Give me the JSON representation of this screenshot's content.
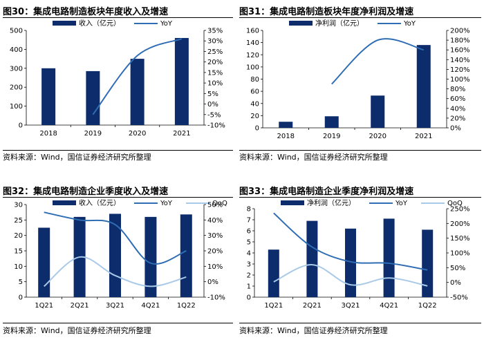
{
  "colors": {
    "bar": "#0d2c6c",
    "yoy": "#2e6db4",
    "qoq": "#a9c9e8"
  },
  "source_text": "资料来源：Wind，国信证券经济研究所整理",
  "chart_data": [
    {
      "type": "bar",
      "title": "图30：集成电路制造板块年度收入及增速",
      "categories": [
        "2018",
        "2019",
        "2020",
        "2021"
      ],
      "series": [
        {
          "name": "收入（亿元）",
          "kind": "bar",
          "axis": "left",
          "values": [
            300,
            285,
            350,
            460
          ]
        },
        {
          "name": "YoY",
          "kind": "line",
          "axis": "right",
          "values": [
            null,
            -5,
            23,
            31
          ]
        }
      ],
      "ylim": [
        0,
        500
      ],
      "yticks": [
        0,
        100,
        200,
        300,
        400,
        500
      ],
      "y2lim": [
        -10,
        35
      ],
      "y2ticks": [
        -10,
        -5,
        0,
        5,
        10,
        15,
        20,
        25,
        30,
        35
      ],
      "y2suffix": "%"
    },
    {
      "type": "bar",
      "title": "图31：集成电路制造板块年度净利润及增速",
      "categories": [
        "2018",
        "2019",
        "2020",
        "2021"
      ],
      "series": [
        {
          "name": "净利润（亿元）",
          "kind": "bar",
          "axis": "left",
          "values": [
            10,
            19,
            53,
            136
          ]
        },
        {
          "name": "YoY",
          "kind": "line",
          "axis": "right",
          "values": [
            null,
            90,
            180,
            160
          ]
        }
      ],
      "ylim": [
        0,
        160
      ],
      "yticks": [
        0,
        20,
        40,
        60,
        80,
        100,
        120,
        140,
        160
      ],
      "y2lim": [
        0,
        200
      ],
      "y2ticks": [
        0,
        20,
        40,
        60,
        80,
        100,
        120,
        140,
        160,
        180,
        200
      ],
      "y2suffix": "%"
    },
    {
      "type": "bar",
      "title": "图32：集成电路制造企业季度收入及增速",
      "categories": [
        "1Q21",
        "2Q21",
        "3Q21",
        "4Q21",
        "1Q22"
      ],
      "series": [
        {
          "name": "收入（亿元）",
          "kind": "bar",
          "axis": "left",
          "values": [
            22.5,
            26,
            27,
            26,
            26.8
          ]
        },
        {
          "name": "YoY",
          "kind": "line",
          "axis": "right",
          "values": [
            45,
            40,
            37,
            12,
            20
          ]
        },
        {
          "name": "QoQ",
          "kind": "line",
          "axis": "right",
          "values": [
            -3,
            16,
            4,
            -3,
            3
          ]
        }
      ],
      "ylim": [
        0,
        30
      ],
      "yticks": [
        0,
        5,
        10,
        15,
        20,
        25,
        30
      ],
      "y2lim": [
        -10,
        50
      ],
      "y2ticks": [
        -10,
        0,
        10,
        20,
        30,
        40,
        50
      ],
      "y2suffix": "%"
    },
    {
      "type": "bar",
      "title": "图33：集成电路制造企业季度净利润及增速",
      "categories": [
        "1Q21",
        "2Q21",
        "3Q21",
        "4Q21",
        "1Q22"
      ],
      "series": [
        {
          "name": "净利润（亿元）",
          "kind": "bar",
          "axis": "left",
          "values": [
            4.3,
            6.9,
            6.2,
            7.1,
            6.1
          ]
        },
        {
          "name": "YoY",
          "kind": "line",
          "axis": "right",
          "values": [
            235,
            120,
            70,
            65,
            42
          ]
        },
        {
          "name": "QoQ",
          "kind": "line",
          "axis": "right",
          "values": [
            2,
            60,
            -8,
            15,
            -12
          ]
        }
      ],
      "ylim": [
        0,
        8
      ],
      "yticks": [
        0,
        1,
        2,
        3,
        4,
        5,
        6,
        7,
        8
      ],
      "y2lim": [
        -50,
        250
      ],
      "y2ticks": [
        -50,
        0,
        50,
        100,
        150,
        200,
        250
      ],
      "y2suffix": "%"
    }
  ]
}
